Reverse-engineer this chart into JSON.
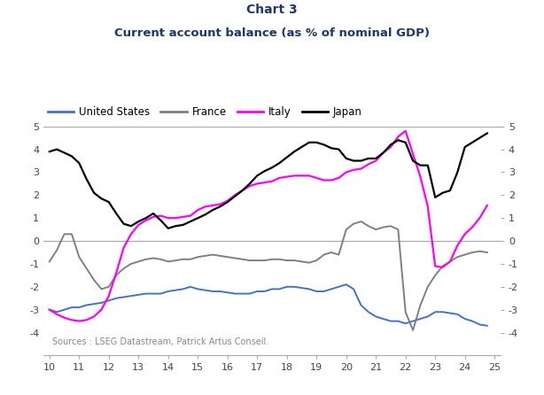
{
  "title_line1": "Chart 3",
  "title_line2": "Current account balance (as % of nominal GDP)",
  "title_color": "#1f3864",
  "source_text": "Sources : LSEG Datastream, Patrick Artus Conseil.",
  "xlim": [
    9.8,
    25.2
  ],
  "ylim": [
    -5,
    5
  ],
  "yticks": [
    -4,
    -3,
    -2,
    -1,
    0,
    1,
    2,
    3,
    4,
    5
  ],
  "xticks": [
    10,
    11,
    12,
    13,
    14,
    15,
    16,
    17,
    18,
    19,
    20,
    21,
    22,
    23,
    24,
    25
  ],
  "series": {
    "United States": {
      "color": "#4472c4",
      "linewidth": 1.4,
      "x": [
        10.0,
        10.25,
        10.5,
        10.75,
        11.0,
        11.25,
        11.5,
        11.75,
        12.0,
        12.25,
        12.5,
        12.75,
        13.0,
        13.25,
        13.5,
        13.75,
        14.0,
        14.25,
        14.5,
        14.75,
        15.0,
        15.25,
        15.5,
        15.75,
        16.0,
        16.25,
        16.5,
        16.75,
        17.0,
        17.25,
        17.5,
        17.75,
        18.0,
        18.25,
        18.5,
        18.75,
        19.0,
        19.25,
        19.5,
        19.75,
        20.0,
        20.25,
        20.5,
        20.75,
        21.0,
        21.25,
        21.5,
        21.75,
        22.0,
        22.25,
        22.5,
        22.75,
        23.0,
        23.25,
        23.5,
        23.75,
        24.0,
        24.25,
        24.5,
        24.75
      ],
      "y": [
        -3.0,
        -3.1,
        -3.0,
        -2.9,
        -2.9,
        -2.8,
        -2.75,
        -2.7,
        -2.6,
        -2.5,
        -2.45,
        -2.4,
        -2.35,
        -2.3,
        -2.3,
        -2.3,
        -2.2,
        -2.15,
        -2.1,
        -2.0,
        -2.1,
        -2.15,
        -2.2,
        -2.2,
        -2.25,
        -2.3,
        -2.3,
        -2.3,
        -2.2,
        -2.2,
        -2.1,
        -2.1,
        -2.0,
        -2.0,
        -2.05,
        -2.1,
        -2.2,
        -2.2,
        -2.1,
        -2.0,
        -1.9,
        -2.1,
        -2.8,
        -3.1,
        -3.3,
        -3.4,
        -3.5,
        -3.5,
        -3.6,
        -3.5,
        -3.4,
        -3.3,
        -3.1,
        -3.1,
        -3.15,
        -3.2,
        -3.4,
        -3.5,
        -3.65,
        -3.7
      ]
    },
    "France": {
      "color": "#808080",
      "linewidth": 1.4,
      "x": [
        10.0,
        10.25,
        10.5,
        10.75,
        11.0,
        11.25,
        11.5,
        11.75,
        12.0,
        12.25,
        12.5,
        12.75,
        13.0,
        13.25,
        13.5,
        13.75,
        14.0,
        14.25,
        14.5,
        14.75,
        15.0,
        15.25,
        15.5,
        15.75,
        16.0,
        16.25,
        16.5,
        16.75,
        17.0,
        17.25,
        17.5,
        17.75,
        18.0,
        18.25,
        18.5,
        18.75,
        19.0,
        19.25,
        19.5,
        19.75,
        20.0,
        20.25,
        20.5,
        20.75,
        21.0,
        21.25,
        21.5,
        21.75,
        22.0,
        22.25,
        22.5,
        22.75,
        23.0,
        23.25,
        23.5,
        23.75,
        24.0,
        24.25,
        24.5,
        24.75
      ],
      "y": [
        -0.9,
        -0.4,
        0.3,
        0.3,
        -0.7,
        -1.2,
        -1.7,
        -2.1,
        -2.0,
        -1.5,
        -1.2,
        -1.0,
        -0.9,
        -0.8,
        -0.75,
        -0.8,
        -0.9,
        -0.85,
        -0.8,
        -0.8,
        -0.7,
        -0.65,
        -0.6,
        -0.65,
        -0.7,
        -0.75,
        -0.8,
        -0.85,
        -0.85,
        -0.85,
        -0.8,
        -0.8,
        -0.85,
        -0.85,
        -0.9,
        -0.95,
        -0.85,
        -0.6,
        -0.5,
        -0.6,
        0.5,
        0.75,
        0.85,
        0.65,
        0.5,
        0.6,
        0.65,
        0.5,
        -3.1,
        -3.9,
        -2.8,
        -2.0,
        -1.5,
        -1.1,
        -0.9,
        -0.7,
        -0.6,
        -0.5,
        -0.45,
        -0.5
      ]
    },
    "Italy": {
      "color": "#ff00ff",
      "linewidth": 1.6,
      "x": [
        10.0,
        10.25,
        10.5,
        10.75,
        11.0,
        11.25,
        11.5,
        11.75,
        12.0,
        12.25,
        12.5,
        12.75,
        13.0,
        13.25,
        13.5,
        13.75,
        14.0,
        14.25,
        14.5,
        14.75,
        15.0,
        15.25,
        15.5,
        15.75,
        16.0,
        16.25,
        16.5,
        16.75,
        17.0,
        17.25,
        17.5,
        17.75,
        18.0,
        18.25,
        18.5,
        18.75,
        19.0,
        19.25,
        19.5,
        19.75,
        20.0,
        20.25,
        20.5,
        20.75,
        21.0,
        21.25,
        21.5,
        21.75,
        22.0,
        22.25,
        22.5,
        22.75,
        23.0,
        23.25,
        23.5,
        23.75,
        24.0,
        24.25,
        24.5,
        24.75
      ],
      "y": [
        -3.0,
        -3.2,
        -3.35,
        -3.45,
        -3.5,
        -3.45,
        -3.3,
        -3.0,
        -2.4,
        -1.4,
        -0.3,
        0.3,
        0.7,
        0.9,
        1.05,
        1.1,
        1.0,
        1.0,
        1.05,
        1.1,
        1.35,
        1.5,
        1.55,
        1.6,
        1.75,
        2.0,
        2.2,
        2.4,
        2.5,
        2.55,
        2.6,
        2.75,
        2.8,
        2.85,
        2.85,
        2.85,
        2.75,
        2.65,
        2.65,
        2.75,
        3.0,
        3.1,
        3.15,
        3.35,
        3.5,
        3.85,
        4.1,
        4.55,
        4.8,
        3.8,
        2.8,
        1.5,
        -1.1,
        -1.15,
        -0.9,
        -0.2,
        0.3,
        0.6,
        1.0,
        1.55
      ]
    },
    "Japan": {
      "color": "#000000",
      "linewidth": 1.6,
      "x": [
        10.0,
        10.25,
        10.5,
        10.75,
        11.0,
        11.25,
        11.5,
        11.75,
        12.0,
        12.25,
        12.5,
        12.75,
        13.0,
        13.25,
        13.5,
        13.75,
        14.0,
        14.25,
        14.5,
        14.75,
        15.0,
        15.25,
        15.5,
        15.75,
        16.0,
        16.25,
        16.5,
        16.75,
        17.0,
        17.25,
        17.5,
        17.75,
        18.0,
        18.25,
        18.5,
        18.75,
        19.0,
        19.25,
        19.5,
        19.75,
        20.0,
        20.25,
        20.5,
        20.75,
        21.0,
        21.25,
        21.5,
        21.75,
        22.0,
        22.25,
        22.5,
        22.75,
        23.0,
        23.25,
        23.5,
        23.75,
        24.0,
        24.25,
        24.5,
        24.75
      ],
      "y": [
        3.9,
        4.0,
        3.85,
        3.7,
        3.4,
        2.7,
        2.1,
        1.85,
        1.7,
        1.2,
        0.75,
        0.65,
        0.85,
        1.0,
        1.2,
        0.9,
        0.55,
        0.65,
        0.7,
        0.85,
        1.0,
        1.15,
        1.35,
        1.5,
        1.7,
        1.95,
        2.2,
        2.5,
        2.85,
        3.05,
        3.2,
        3.4,
        3.65,
        3.9,
        4.1,
        4.3,
        4.3,
        4.2,
        4.05,
        4.0,
        3.6,
        3.5,
        3.5,
        3.6,
        3.6,
        3.85,
        4.2,
        4.4,
        4.3,
        3.5,
        3.3,
        3.3,
        1.9,
        2.1,
        2.2,
        3.0,
        4.1,
        4.3,
        4.5,
        4.7
      ]
    }
  },
  "legend_entries": [
    "United States",
    "France",
    "Italy",
    "Japan"
  ],
  "legend_colors": [
    "#4472c4",
    "#808080",
    "#ff00ff",
    "#000000"
  ]
}
